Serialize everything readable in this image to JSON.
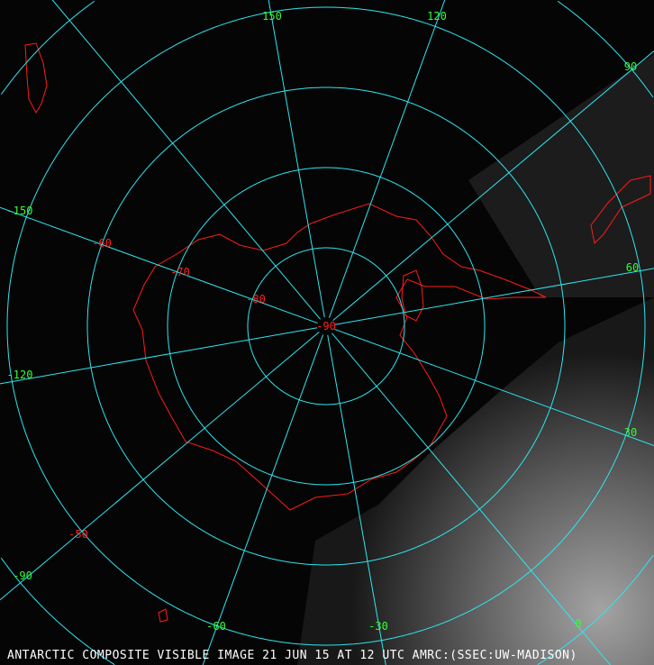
{
  "caption": "ANTARCTIC COMPOSITE VISIBLE IMAGE 21 JUN 15 AT 12 UTC AMRC:(SSEC:UW-MADISON)",
  "colors": {
    "graticule": "#2ee6f0",
    "coastline": "#ff1a1a",
    "lon_labels": "#33ff33",
    "lat_labels": "#ff2020",
    "background": "#050505",
    "clouds": "#9a9a9a"
  },
  "longitude_labels": [
    "150",
    "120",
    "90",
    "60",
    "30",
    "0",
    "-30",
    "-60",
    "-90",
    "-120",
    "-150"
  ],
  "latitude_labels": [
    "-90",
    "-80",
    "-70",
    "-60",
    "-50"
  ]
}
